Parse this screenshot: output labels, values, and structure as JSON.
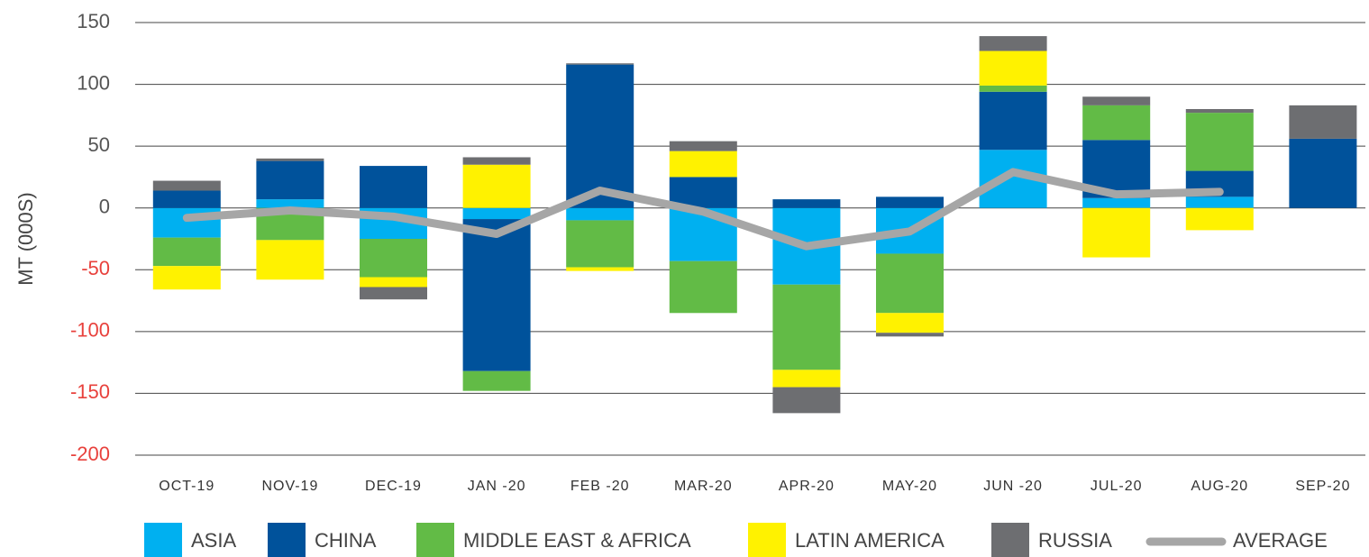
{
  "chart_data": {
    "type": "bar",
    "stacked": true,
    "y_axis_label": "MT (000S)",
    "categories": [
      "OCT-19",
      "NOV-19",
      "DEC-19",
      "JAN -20",
      "FEB -20",
      "MAR-20",
      "APR-20",
      "MAY-20",
      "JUN -20",
      "JUL-20",
      "AUG-20",
      "SEP-20"
    ],
    "series": [
      {
        "name": "ASIA",
        "color": "#00b0f0",
        "values": [
          -24,
          7,
          -25,
          -9,
          -10,
          -43,
          -62,
          -37,
          47,
          8,
          9,
          0
        ]
      },
      {
        "name": "CHINA",
        "color": "#00529b",
        "values": [
          14,
          31,
          34,
          -123,
          116,
          25,
          7,
          9,
          47,
          47,
          21,
          56
        ]
      },
      {
        "name": "MIDDLE EAST & AFRICA",
        "color": "#62bb46",
        "values": [
          -23,
          -26,
          -31,
          -16,
          -38,
          -42,
          -69,
          -48,
          5,
          28,
          47,
          0
        ]
      },
      {
        "name": "LATIN AMERICA",
        "color": "#fff200",
        "values": [
          -19,
          -32,
          -8,
          35,
          -3,
          21,
          -14,
          -16,
          28,
          -40,
          -18,
          0
        ]
      },
      {
        "name": "RUSSIA",
        "color": "#6d6e71",
        "values": [
          8,
          2,
          -10,
          6,
          1,
          8,
          -21,
          -3,
          12,
          7,
          3,
          27
        ]
      }
    ],
    "line": {
      "name": "AVERAGE",
      "color": "#a6a6a6",
      "values": [
        -8,
        -2,
        -7,
        -21,
        14,
        -3,
        -31,
        -19,
        29,
        11,
        13,
        null
      ]
    },
    "ylim": [
      -200,
      150
    ],
    "yticks": [
      -200,
      -150,
      -100,
      -50,
      0,
      50,
      100,
      150
    ],
    "grid": true,
    "tick_label_color": "#555555",
    "negative_tick_label_color": "#e8413c",
    "legend": "bottom"
  }
}
